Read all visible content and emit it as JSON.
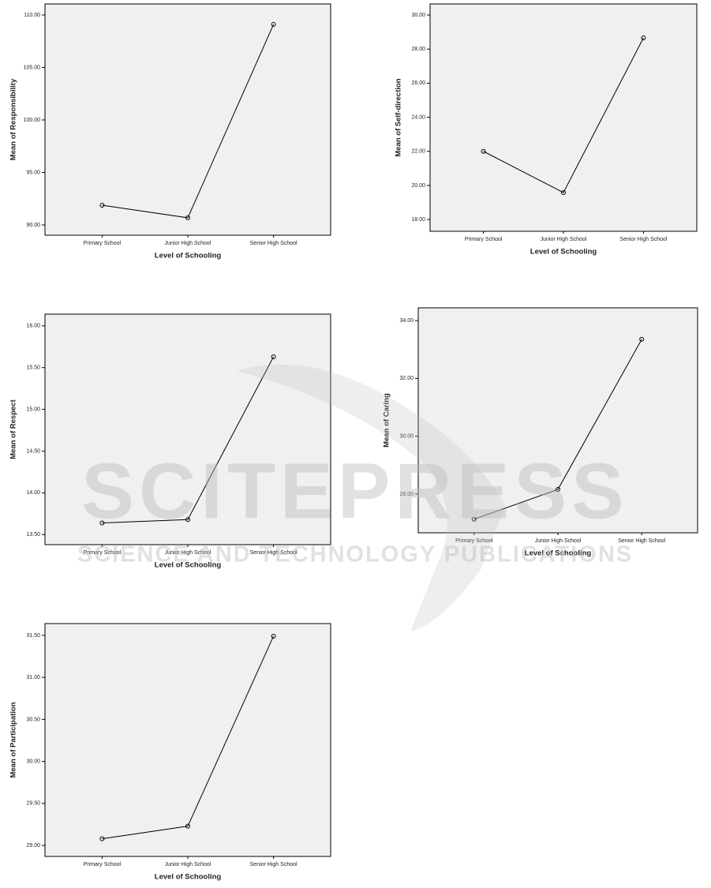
{
  "chart_data": [
    {
      "type": "line",
      "categories": [
        "Primary School",
        "Junior High School",
        "Senior High School"
      ],
      "values": [
        91.88,
        90.68,
        109.1
      ],
      "x_label": "Level of Schooling",
      "y_label": "Mean of Responsibility",
      "color": "#000000",
      "ylim": [
        89.02,
        111.05
      ],
      "yticks": [
        {
          "value": 90,
          "label": "90.00"
        },
        {
          "value": 95,
          "label": "95.00"
        },
        {
          "value": 100,
          "label": "100.00"
        },
        {
          "value": 105,
          "label": "105.00"
        },
        {
          "value": 110,
          "label": "110.00"
        }
      ]
    },
    {
      "type": "line",
      "categories": [
        "Primary School",
        "Junior High School",
        "Senior High School"
      ],
      "values": [
        22.0,
        19.58,
        28.66
      ],
      "x_label": "Level of Schooling",
      "y_label": "Mean of Self-direction",
      "color": "#000000",
      "ylim": [
        17.31,
        30.65
      ],
      "yticks": [
        {
          "value": 18,
          "label": "18.00"
        },
        {
          "value": 20,
          "label": "20.00"
        },
        {
          "value": 22,
          "label": "22.00"
        },
        {
          "value": 24,
          "label": "24.00"
        },
        {
          "value": 26,
          "label": "26.00"
        },
        {
          "value": 28,
          "label": "28.00"
        },
        {
          "value": 30,
          "label": "30.00"
        }
      ]
    },
    {
      "type": "line",
      "categories": [
        "Primary School",
        "Junior High School",
        "Senior High School"
      ],
      "values": [
        13.64,
        13.68,
        15.63
      ],
      "x_label": "Level of Schooling",
      "y_label": "Mean of Respect",
      "color": "#000000",
      "ylim": [
        13.38,
        16.14
      ],
      "yticks": [
        {
          "value": 13.5,
          "label": "13.50"
        },
        {
          "value": 14,
          "label": "14.00"
        },
        {
          "value": 14.5,
          "label": "14.50"
        },
        {
          "value": 15,
          "label": "15.00"
        },
        {
          "value": 15.5,
          "label": "15.50"
        },
        {
          "value": 16,
          "label": "16.00"
        }
      ]
    },
    {
      "type": "line",
      "categories": [
        "Primary School",
        "Junior High School",
        "Senior High School"
      ],
      "values": [
        27.13,
        28.16,
        33.35
      ],
      "x_label": "Level of Schooling",
      "y_label": "Mean of Caring",
      "color": "#000000",
      "ylim": [
        26.66,
        34.44
      ],
      "yticks": [
        {
          "value": 28,
          "label": "28.00"
        },
        {
          "value": 30,
          "label": "30.00"
        },
        {
          "value": 32,
          "label": "32.00"
        },
        {
          "value": 34,
          "label": "34.00"
        }
      ]
    },
    {
      "type": "line",
      "categories": [
        "Primary School",
        "Junior High School",
        "Senior High School"
      ],
      "values": [
        29.08,
        29.23,
        31.49
      ],
      "x_label": "Level of Schooling",
      "y_label": "Mean of Participation",
      "color": "#000000",
      "ylim": [
        28.87,
        31.64
      ],
      "yticks": [
        {
          "value": 29,
          "label": "29.00"
        },
        {
          "value": 29.5,
          "label": "29.50"
        },
        {
          "value": 30,
          "label": "30.00"
        },
        {
          "value": 30.5,
          "label": "30.50"
        },
        {
          "value": 31,
          "label": "31.00"
        },
        {
          "value": 31.5,
          "label": "31.50"
        }
      ]
    }
  ],
  "watermark": {
    "title": "SCITEPRESS",
    "subtitle": "SCIENCE AND TECHNOLOGY PUBLICATIONS"
  }
}
